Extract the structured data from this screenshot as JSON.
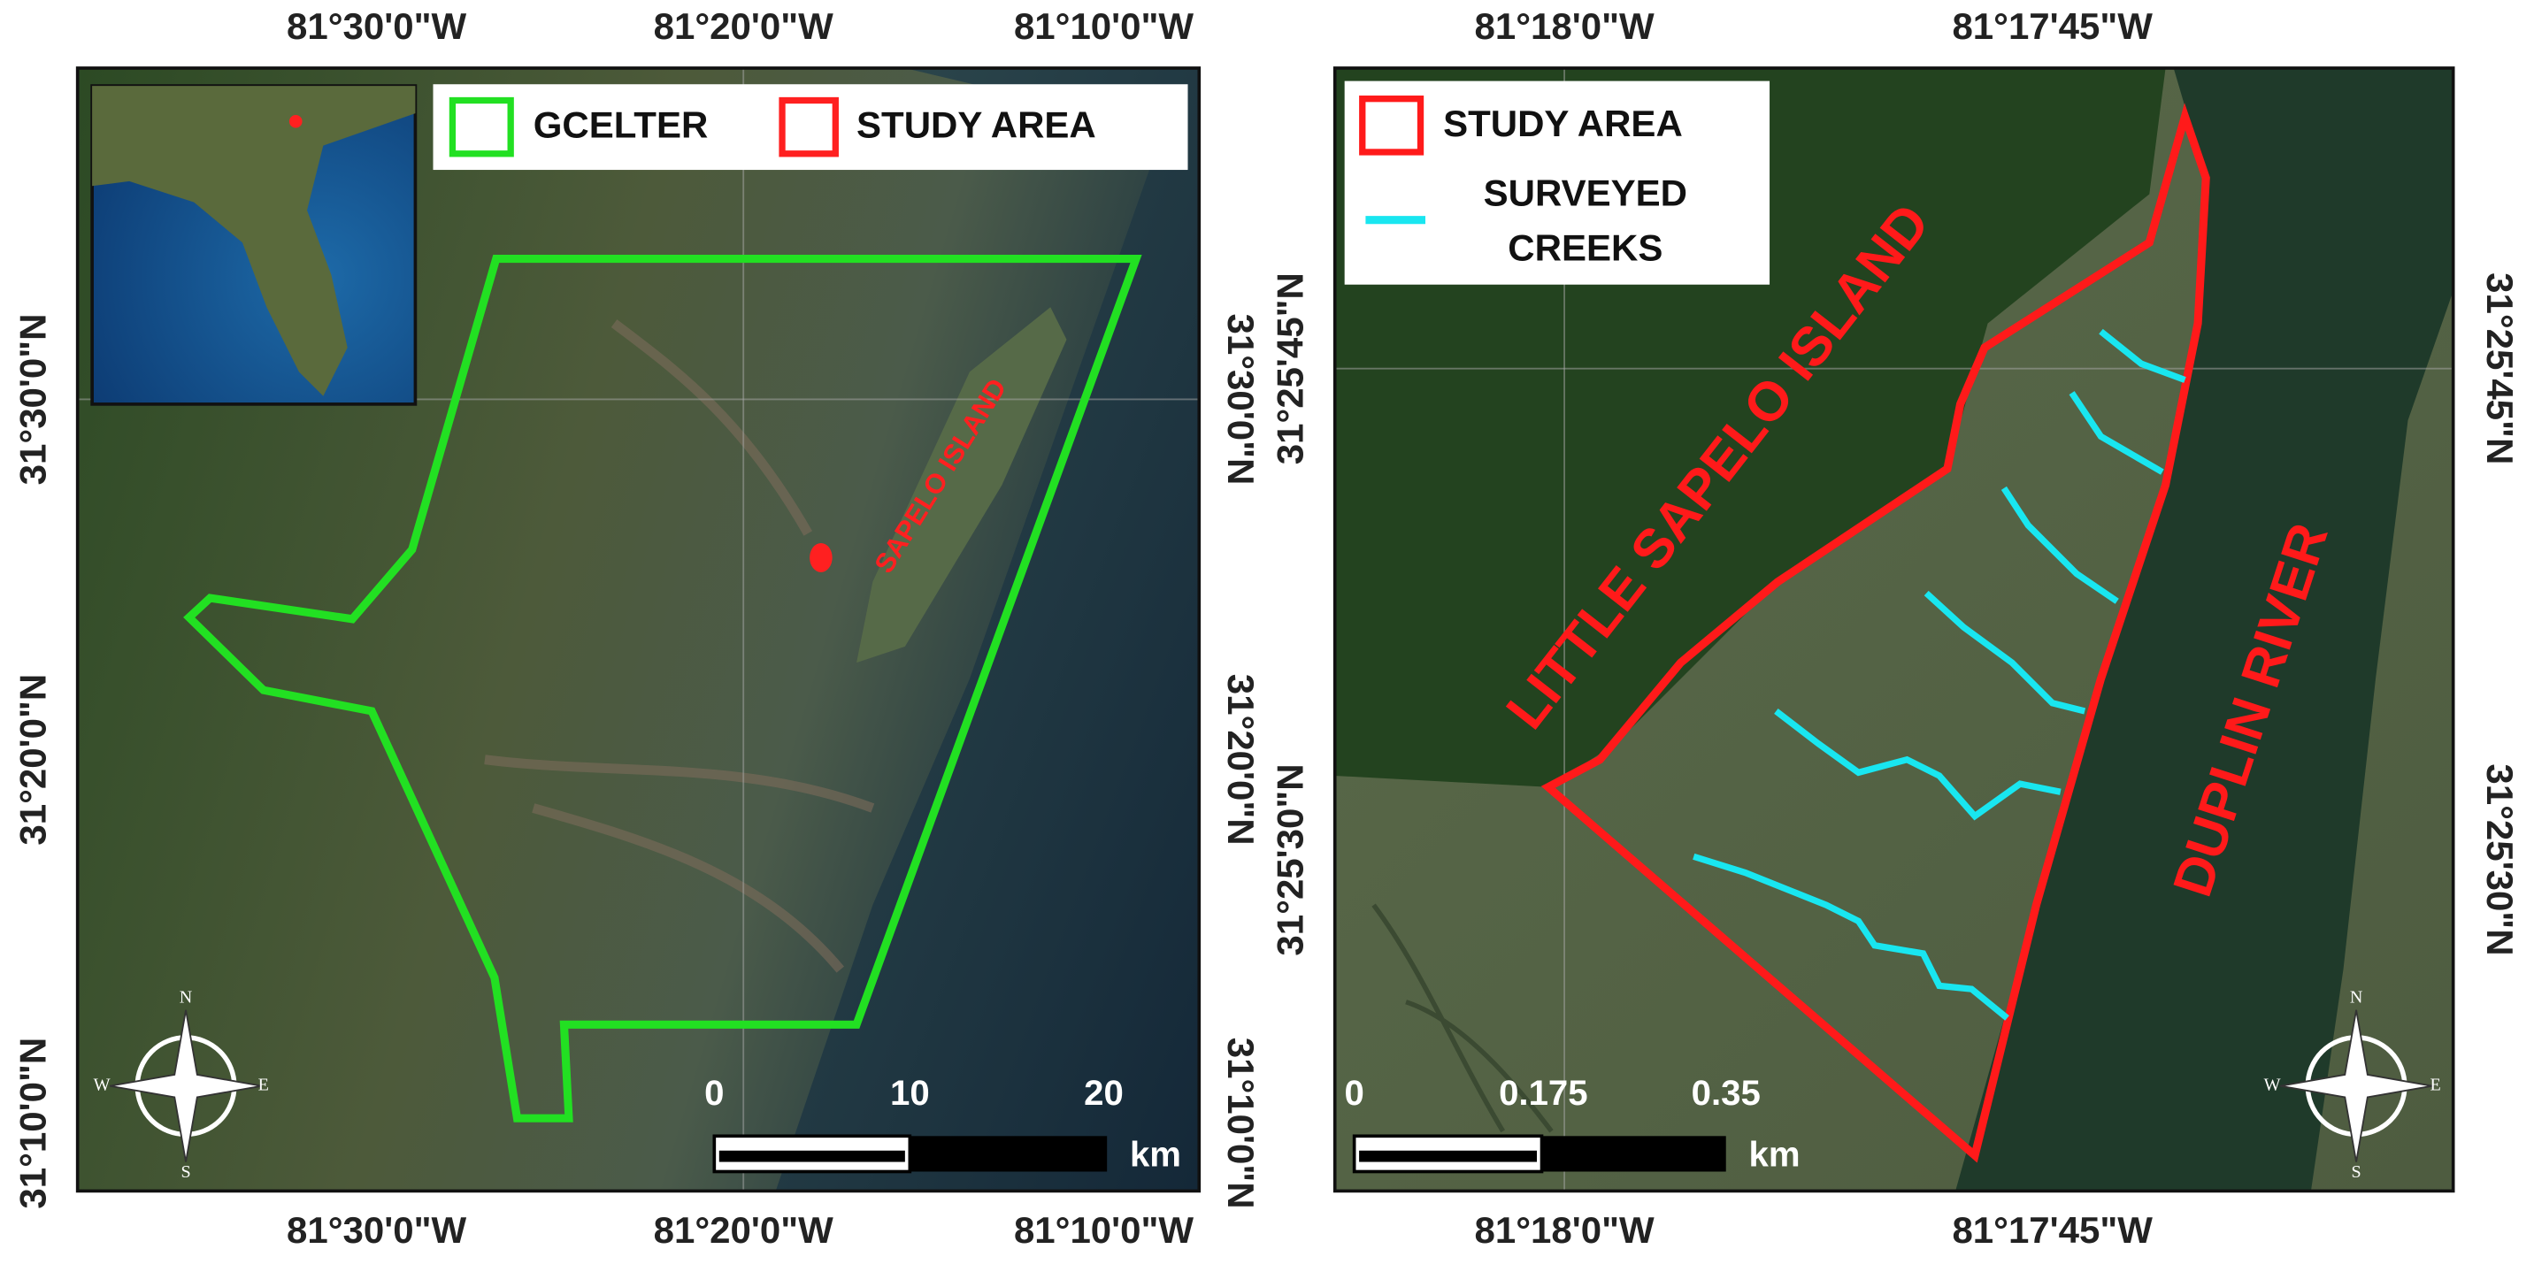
{
  "left_map": {
    "top_ticks": [
      "81°30'0\"W",
      "81°20'0\"W",
      "81°10'0\"W"
    ],
    "bottom_ticks": [
      "81°30'0\"W",
      "81°20'0\"W",
      "81°10'0\"W"
    ],
    "left_ticks": [
      "31°30'0\"N",
      "31°20'0\"N",
      "31°10'0\"N"
    ],
    "right_ticks": [
      "31°30'0\"N",
      "31°20'0\"N",
      "31°10'0\"N"
    ],
    "legend": [
      "GCELTER",
      "STUDY AREA"
    ],
    "labels": [
      "SAPELO ISLAND"
    ],
    "scale_bar": {
      "labels": [
        "0",
        "10",
        "20"
      ],
      "unit": "km"
    },
    "compass": [
      "N",
      "E",
      "S",
      "W"
    ]
  },
  "right_map": {
    "top_ticks": [
      "81°18'0\"W",
      "81°17'45\"W"
    ],
    "bottom_ticks": [
      "81°18'0\"W",
      "81°17'45\"W"
    ],
    "left_ticks": [
      "31°25'45\"N",
      "31°25'30\"N"
    ],
    "right_ticks": [
      "31°25'45\"N",
      "31°25'30\"N"
    ],
    "legend": [
      "STUDY AREA",
      "SURVEYED",
      "CREEKS"
    ],
    "labels": [
      "LITTLE SAPELO ISLAND",
      "DUPLIN RIVER"
    ],
    "scale_bar": {
      "labels": [
        "0",
        "0.175",
        "0.35"
      ],
      "unit": "km"
    },
    "compass": [
      "N",
      "E",
      "S",
      "W"
    ]
  }
}
